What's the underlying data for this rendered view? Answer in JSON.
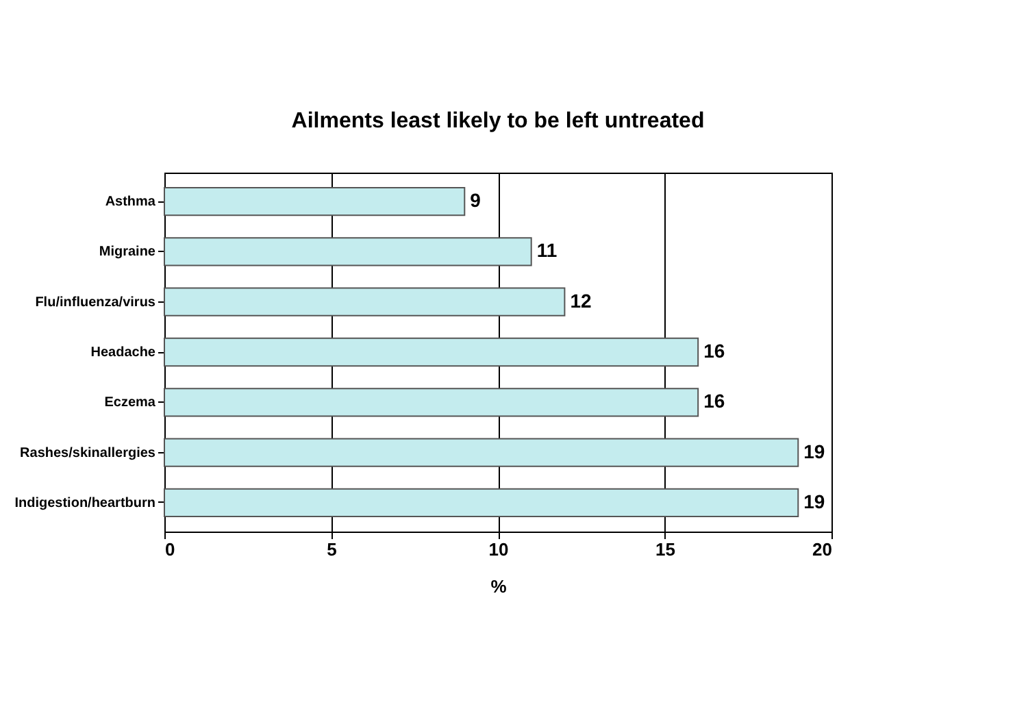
{
  "chart_data": {
    "type": "bar",
    "orientation": "horizontal",
    "title": "Ailments least likely to be left untreated",
    "xlabel": "%",
    "categories": [
      "Asthma",
      "Migraine",
      "Flu/influenza/virus",
      "Headache",
      "Eczema",
      "Rashes/skinallergies",
      "Indigestion/heartburn"
    ],
    "values": [
      9,
      11,
      12,
      16,
      16,
      19,
      19
    ],
    "color": "#c4ecee",
    "xlim": [
      0,
      20
    ],
    "xticks": [
      0,
      5,
      10,
      15,
      20
    ],
    "grid": "x",
    "data_labels": true
  }
}
